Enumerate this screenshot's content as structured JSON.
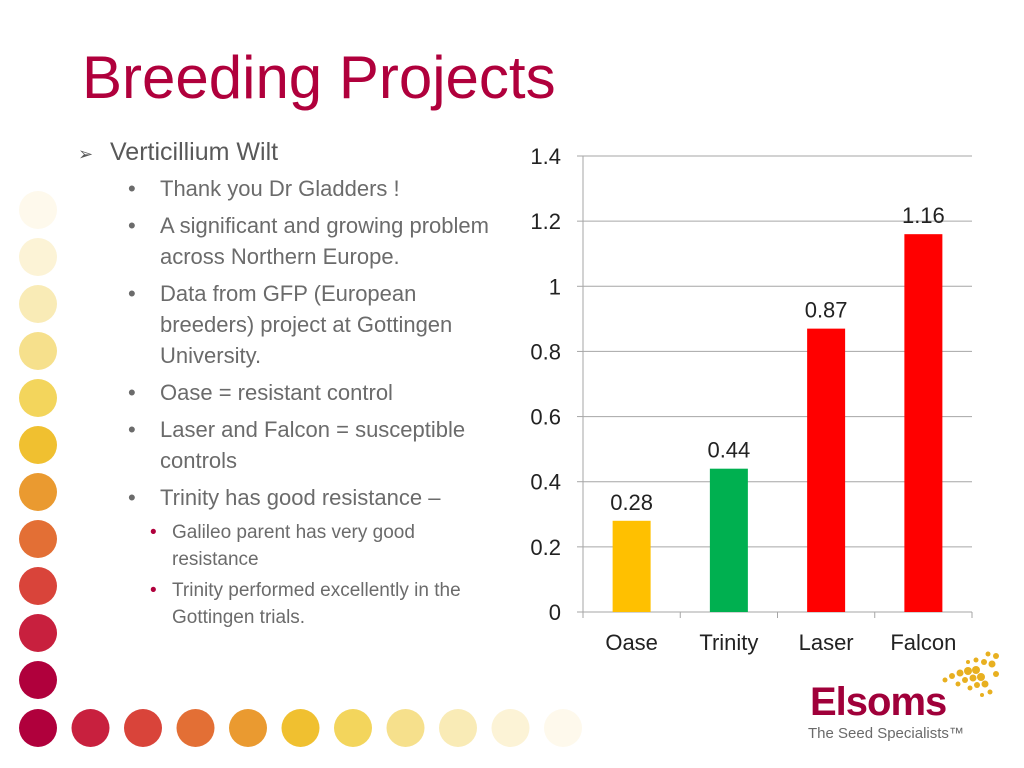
{
  "slide": {
    "title": "Breeding Projects"
  },
  "bullets": {
    "heading": "Verticillium Wilt",
    "items": [
      {
        "text": "Thank you Dr Gladders !"
      },
      {
        "text": "A significant and growing problem across Northern Europe."
      },
      {
        "text": "Data from GFP (European breeders) project at Gottingen University."
      },
      {
        "text": "Oase = resistant control"
      },
      {
        "text": "Laser and Falcon = susceptible controls"
      },
      {
        "text": "Trinity has good resistance –"
      }
    ],
    "subitems": [
      {
        "text": "Galileo parent has very good resistance"
      },
      {
        "text": "Trinity performed excellently in the Gottingen trials."
      }
    ]
  },
  "chart_data": {
    "type": "bar",
    "categories": [
      "Oase",
      "Trinity",
      "Laser",
      "Falcon"
    ],
    "values": [
      0.28,
      0.44,
      0.87,
      1.16
    ],
    "data_labels": [
      "0.28",
      "0.44",
      "0.87",
      "1.16"
    ],
    "colors": [
      "#ffc000",
      "#00b050",
      "#ff0000",
      "#ff0000"
    ],
    "ylim": [
      0,
      1.4
    ],
    "yticks": [
      0,
      0.2,
      0.4,
      0.6,
      0.8,
      1,
      1.2,
      1.4
    ],
    "ytick_labels": [
      "0",
      "0.2",
      "0.4",
      "0.6",
      "0.8",
      "1",
      "1.2",
      "1.4"
    ],
    "grid": true,
    "title": "",
    "xlabel": "",
    "ylabel": ""
  },
  "logo": {
    "name": "Elsoms",
    "tagline": "The Seed Specialists™"
  },
  "colors": {
    "title": "#b0003c",
    "body_text": "#595959",
    "dot_palette": [
      "#b0003c",
      "#c8203e",
      "#d9443a",
      "#e36f35",
      "#ea9a30",
      "#f0c030",
      "#f3d55c",
      "#f6e08c",
      "#f9ebb6",
      "#fcf3d6",
      "#fef9ec"
    ]
  }
}
